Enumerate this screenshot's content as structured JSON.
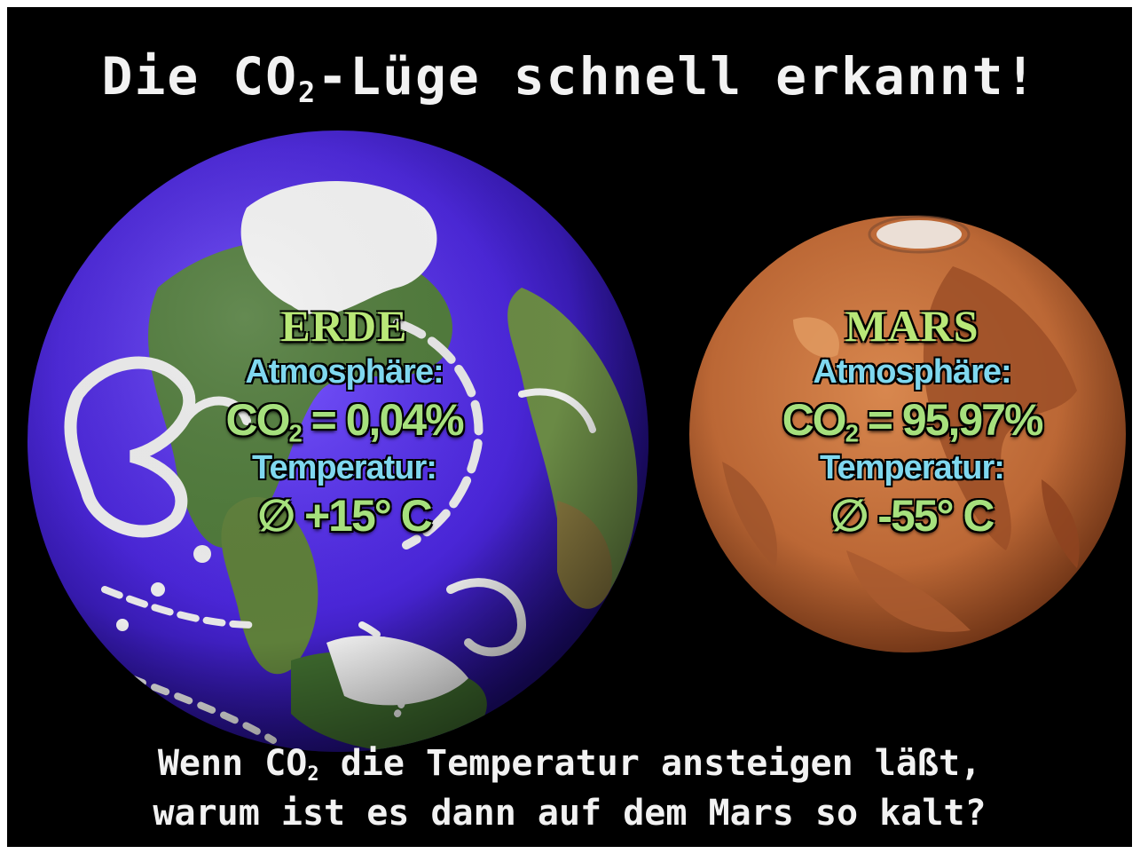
{
  "title": {
    "prefix": "Die CO",
    "sub": "2",
    "suffix": "-Lüge schnell erkannt!"
  },
  "earth": {
    "name": "ERDE",
    "atmosphere_label": "Atmosphäre:",
    "co2_prefix": "CO",
    "co2_sub": "2",
    "co2_value": " = 0,04%",
    "temperature_label": "Temperatur:",
    "temperature_value": "∅ +15° C"
  },
  "mars": {
    "name": "MARS",
    "atmosphere_label": "Atmosphäre:",
    "co2_prefix": "CO",
    "co2_sub": "2",
    "co2_value": " = 95,97%",
    "temperature_label": "Temperatur:",
    "temperature_value": "∅ -55° C"
  },
  "question": {
    "line1_prefix": "Wenn CO",
    "line1_sub": "2",
    "line1_suffix": " die Temperatur ansteigen läßt,",
    "line2": "warum ist es dann auf dem Mars so kalt?"
  },
  "colors": {
    "background": "#000000",
    "ocean": "#5a2fe8",
    "mars": "#c7703e",
    "name_text": "#b9e878",
    "label_text": "#7fd8ef",
    "value_text": "#a6e07d"
  },
  "icons": [
    "earth-globe-icon",
    "mars-planet-icon"
  ]
}
